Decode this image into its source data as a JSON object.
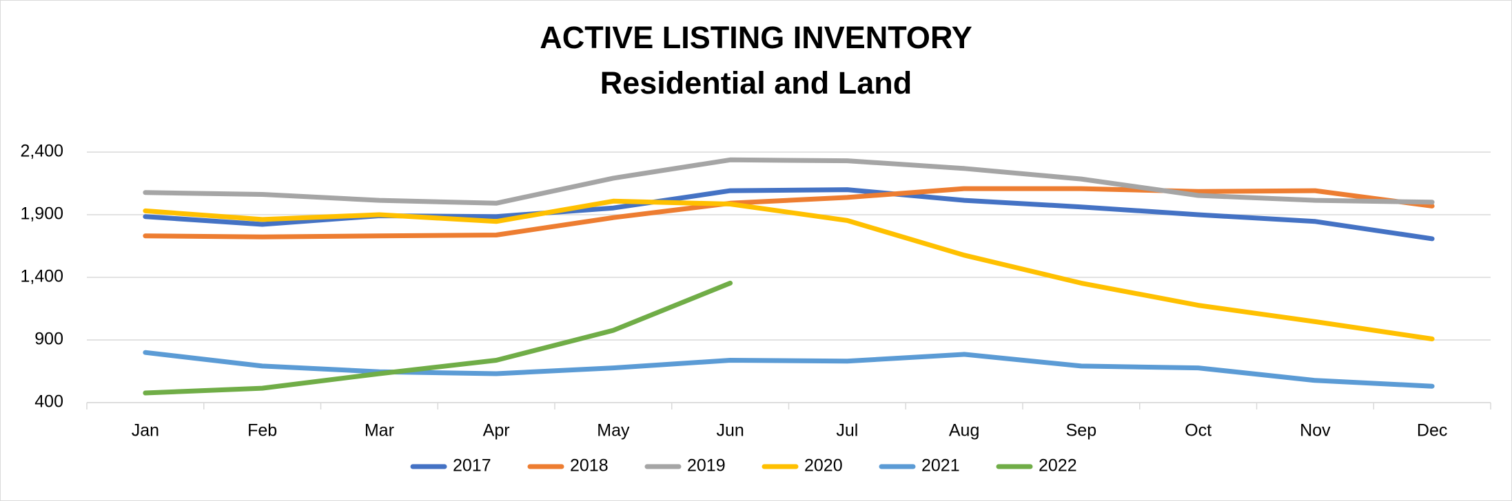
{
  "chart_data": {
    "type": "line",
    "title": "ACTIVE LISTING INVENTORY",
    "subtitle": "Residential and Land",
    "categories": [
      "Jan",
      "Feb",
      "Mar",
      "Apr",
      "May",
      "Jun",
      "Jul",
      "Aug",
      "Sep",
      "Oct",
      "Nov",
      "Dec"
    ],
    "series": [
      {
        "name": "2017",
        "color": "#4472c4",
        "values": [
          1885,
          1823,
          1892,
          1885,
          1954,
          2092,
          2100,
          2015,
          1962,
          1900,
          1846,
          1708
        ]
      },
      {
        "name": "2018",
        "color": "#ed7d31",
        "values": [
          1731,
          1723,
          1731,
          1738,
          1877,
          1992,
          2038,
          2108,
          2108,
          2085,
          2092,
          1969
        ]
      },
      {
        "name": "2019",
        "color": "#a5a5a5",
        "values": [
          2077,
          2062,
          2015,
          1992,
          2192,
          2338,
          2331,
          2269,
          2185,
          2054,
          2015,
          2000
        ]
      },
      {
        "name": "2020",
        "color": "#ffc000",
        "values": [
          1931,
          1862,
          1900,
          1846,
          2008,
          1985,
          1854,
          1577,
          1354,
          1177,
          1046,
          908
        ]
      },
      {
        "name": "2021",
        "color": "#5b9bd5",
        "values": [
          800,
          692,
          646,
          631,
          677,
          738,
          731,
          785,
          692,
          677,
          577,
          531
        ]
      },
      {
        "name": "2022",
        "color": "#70ad47",
        "values": [
          477,
          515,
          631,
          738,
          977,
          1354,
          null,
          null,
          null,
          null,
          null,
          null
        ]
      }
    ],
    "ylim": [
      400,
      2400
    ],
    "yticks": [
      400,
      900,
      {
        "value": 1400,
        "label": "1,400"
      },
      {
        "value": 1900,
        "label": "1,900"
      },
      {
        "value": 2400,
        "label": "2,400"
      }
    ],
    "grid": true,
    "legend": "bottom"
  }
}
